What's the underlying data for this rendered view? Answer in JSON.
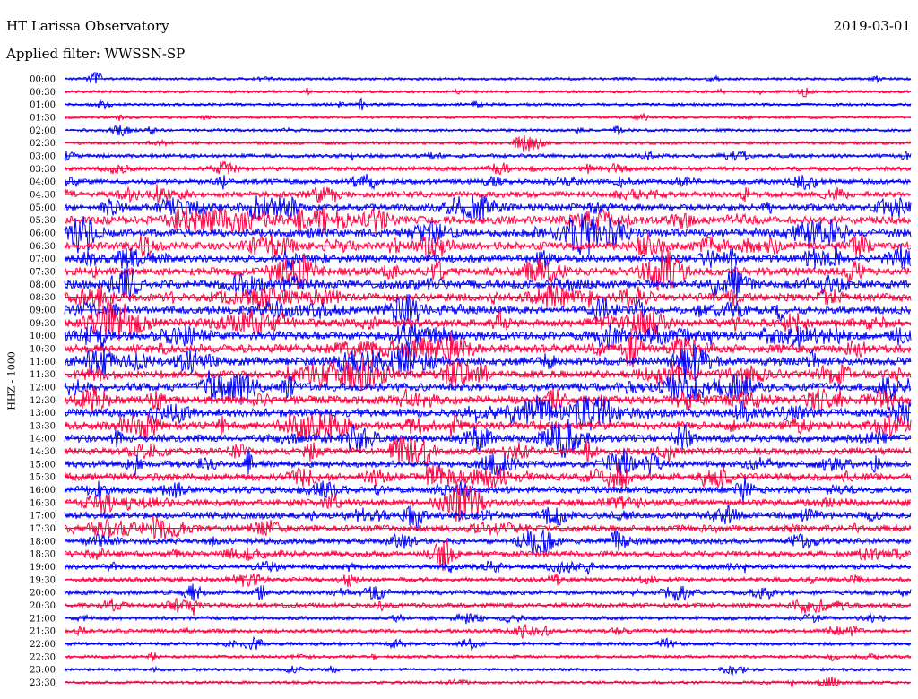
{
  "header": {
    "station": "HT Larissa Observatory",
    "date": "2019-03-01",
    "filter_label": "Applied filter: WWSSN-SP"
  },
  "chart_data": {
    "type": "line",
    "title": "HT Larissa Observatory",
    "date": "2019-03-01",
    "filter": "WWSSN-SP",
    "ylabel": "HHZ - 1000",
    "trace_colors": [
      "#0000ff",
      "#ff0040"
    ],
    "row_interval_minutes": 30,
    "rows": [
      {
        "label": "00:00",
        "activity": 0.12
      },
      {
        "label": "00:30",
        "activity": 0.12
      },
      {
        "label": "01:00",
        "activity": 0.14
      },
      {
        "label": "01:30",
        "activity": 0.1
      },
      {
        "label": "02:00",
        "activity": 0.14
      },
      {
        "label": "02:30",
        "activity": 0.16
      },
      {
        "label": "03:00",
        "activity": 0.25
      },
      {
        "label": "03:30",
        "activity": 0.3
      },
      {
        "label": "04:00",
        "activity": 0.4
      },
      {
        "label": "04:30",
        "activity": 0.5
      },
      {
        "label": "05:00",
        "activity": 0.6
      },
      {
        "label": "05:30",
        "activity": 0.75
      },
      {
        "label": "06:00",
        "activity": 0.8
      },
      {
        "label": "06:30",
        "activity": 0.7
      },
      {
        "label": "07:00",
        "activity": 0.7
      },
      {
        "label": "07:30",
        "activity": 0.75
      },
      {
        "label": "08:00",
        "activity": 0.8
      },
      {
        "label": "08:30",
        "activity": 0.75
      },
      {
        "label": "09:00",
        "activity": 0.75
      },
      {
        "label": "09:30",
        "activity": 0.75
      },
      {
        "label": "10:00",
        "activity": 0.8
      },
      {
        "label": "10:30",
        "activity": 0.8
      },
      {
        "label": "11:00",
        "activity": 0.8
      },
      {
        "label": "11:30",
        "activity": 0.75
      },
      {
        "label": "12:00",
        "activity": 0.75
      },
      {
        "label": "12:30",
        "activity": 0.75
      },
      {
        "label": "13:00",
        "activity": 0.8
      },
      {
        "label": "13:30",
        "activity": 0.75
      },
      {
        "label": "14:00",
        "activity": 0.7
      },
      {
        "label": "14:30",
        "activity": 0.6
      },
      {
        "label": "15:00",
        "activity": 0.6
      },
      {
        "label": "15:30",
        "activity": 0.65
      },
      {
        "label": "16:00",
        "activity": 0.6
      },
      {
        "label": "16:30",
        "activity": 0.6
      },
      {
        "label": "17:00",
        "activity": 0.6
      },
      {
        "label": "17:30",
        "activity": 0.55
      },
      {
        "label": "18:00",
        "activity": 0.5
      },
      {
        "label": "18:30",
        "activity": 0.5
      },
      {
        "label": "19:00",
        "activity": 0.4
      },
      {
        "label": "19:30",
        "activity": 0.35
      },
      {
        "label": "20:00",
        "activity": 0.35
      },
      {
        "label": "20:30",
        "activity": 0.35
      },
      {
        "label": "21:00",
        "activity": 0.25
      },
      {
        "label": "21:30",
        "activity": 0.25
      },
      {
        "label": "22:00",
        "activity": 0.2
      },
      {
        "label": "22:30",
        "activity": 0.15
      },
      {
        "label": "23:00",
        "activity": 0.15
      },
      {
        "label": "23:30",
        "activity": 0.15
      }
    ]
  }
}
